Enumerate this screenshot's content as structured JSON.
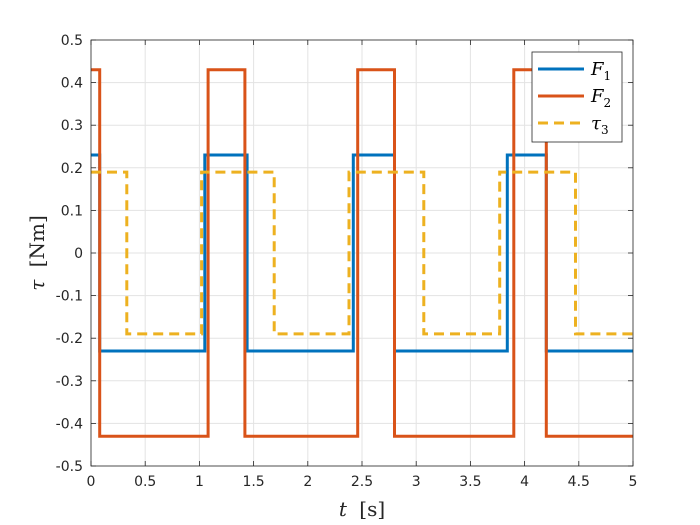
{
  "chart_data": {
    "type": "line",
    "title": "",
    "xlabel_var": "t",
    "xlabel_unit": "[s]",
    "ylabel_var": "τ",
    "ylabel_unit": "[Nm]",
    "xlim": [
      0,
      5
    ],
    "ylim": [
      -0.5,
      0.5
    ],
    "xticks": [
      0,
      0.5,
      1,
      1.5,
      2,
      2.5,
      3,
      3.5,
      4,
      4.5,
      5
    ],
    "xtick_labels": [
      "0",
      "0.5",
      "1",
      "1.5",
      "2",
      "2.5",
      "3",
      "3.5",
      "4",
      "4.5",
      "5"
    ],
    "yticks": [
      -0.5,
      -0.4,
      -0.3,
      -0.2,
      -0.1,
      0,
      0.1,
      0.2,
      0.3,
      0.4,
      0.5
    ],
    "ytick_labels": [
      "-0.5",
      "-0.4",
      "-0.3",
      "-0.2",
      "-0.1",
      "0",
      "0.1",
      "0.2",
      "0.3",
      "0.4",
      "0.5"
    ],
    "grid": true,
    "legend_position": "top-right",
    "series": [
      {
        "name": "F",
        "name_sub": "1",
        "color": "#0072BD",
        "dash": "solid",
        "x": [
          0,
          0.08,
          0.08,
          1.05,
          1.05,
          1.44,
          1.44,
          2.42,
          2.42,
          2.8,
          2.8,
          3.84,
          3.84,
          4.2,
          4.2,
          5
        ],
        "y": [
          0.23,
          0.23,
          -0.23,
          -0.23,
          0.23,
          0.23,
          -0.23,
          -0.23,
          0.23,
          0.23,
          -0.23,
          -0.23,
          0.23,
          0.23,
          -0.23,
          -0.23
        ]
      },
      {
        "name": "F",
        "name_sub": "2",
        "color": "#D95319",
        "dash": "solid",
        "x": [
          0,
          0.08,
          0.08,
          1.08,
          1.08,
          1.42,
          1.42,
          2.46,
          2.46,
          2.8,
          2.8,
          3.9,
          3.9,
          4.2,
          4.2,
          5
        ],
        "y": [
          0.43,
          0.43,
          -0.43,
          -0.43,
          0.43,
          0.43,
          -0.43,
          -0.43,
          0.43,
          0.43,
          -0.43,
          -0.43,
          0.43,
          0.43,
          -0.43,
          -0.43
        ]
      },
      {
        "name": "τ",
        "name_sub": "3",
        "color": "#EDB120",
        "dash": "dashed",
        "x": [
          0,
          0.33,
          0.33,
          1.02,
          1.02,
          1.69,
          1.69,
          2.38,
          2.38,
          3.07,
          3.07,
          3.77,
          3.77,
          4.47,
          4.47,
          5
        ],
        "y": [
          0.19,
          0.19,
          -0.19,
          -0.19,
          0.19,
          0.19,
          -0.19,
          -0.19,
          0.19,
          0.19,
          -0.19,
          -0.19,
          0.19,
          0.19,
          -0.19,
          -0.19
        ]
      }
    ]
  }
}
